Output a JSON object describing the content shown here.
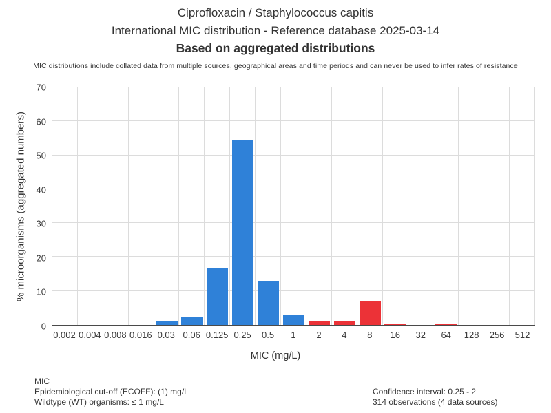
{
  "header": {
    "title_line1": "Ciprofloxacin / Staphylococcus capitis",
    "title_line2": "International MIC distribution - Reference database 2025-03-14",
    "title_line3": "Based on aggregated distributions",
    "disclaimer": "MIC distributions include collated data from multiple sources, geographical areas and time periods and can never be used to infer rates of resistance"
  },
  "chart_data": {
    "type": "bar",
    "title": "Ciprofloxacin / Staphylococcus capitis — International MIC distribution",
    "xlabel": "MIC (mg/L)",
    "ylabel": "% microorganisms (aggregated numbers)",
    "ylim": [
      0,
      70
    ],
    "ytick_step": 10,
    "grid": true,
    "legend": "none",
    "categories": [
      "0.002",
      "0.004",
      "0.008",
      "0.016",
      "0.03",
      "0.06",
      "0.125",
      "0.25",
      "0.5",
      "1",
      "2",
      "4",
      "8",
      "16",
      "32",
      "64",
      "128",
      "256",
      "512"
    ],
    "values": [
      0,
      0,
      0,
      0,
      1.0,
      2.3,
      16.9,
      54.3,
      12.9,
      3.0,
      1.3,
      1.3,
      7.0,
      0.5,
      0,
      0.5,
      0,
      0,
      0
    ],
    "bar_types": [
      "wt",
      "wt",
      "wt",
      "wt",
      "wt",
      "wt",
      "wt",
      "wt",
      "wt",
      "wt",
      "non_wt",
      "non_wt",
      "non_wt",
      "non_wt",
      "non_wt",
      "non_wt",
      "non_wt",
      "non_wt",
      "non_wt"
    ],
    "colors": {
      "wt": "#2f81d8",
      "non_wt": "#ec3237",
      "grid": "#dcdcdc",
      "axis": "#4a4a4a"
    }
  },
  "footer": {
    "left": [
      "MIC",
      "Epidemiological cut-off (ECOFF): (1) mg/L",
      "Wildtype (WT) organisms: ≤ 1 mg/L"
    ],
    "right": [
      "Confidence interval: 0.25 - 2",
      "314 observations (4 data sources)"
    ]
  }
}
